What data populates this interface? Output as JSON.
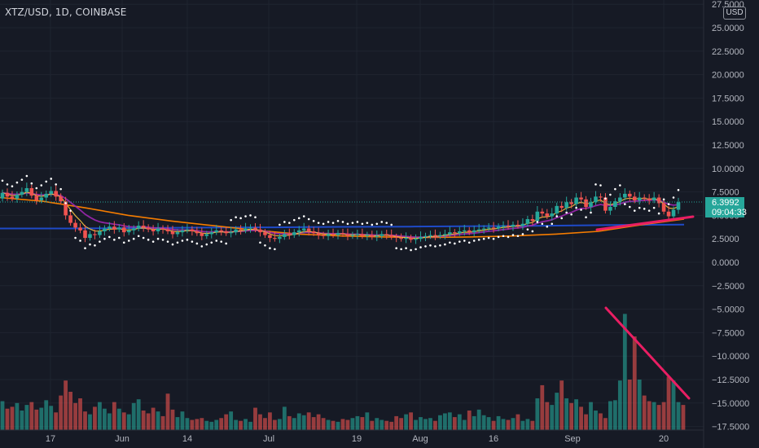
{
  "header": {
    "symbol": "XTZ/USD",
    "timeframe": "1D",
    "exchange": "COINBASE",
    "title": "XTZ/USD, 1D, COINBASE"
  },
  "currency_badge": "USD",
  "last_price": {
    "value": "6.3992",
    "countdown": "09:04:33",
    "color": "#26a69a"
  },
  "colors": {
    "background": "#161a25",
    "grid": "#1f2430",
    "up": "#26a69a",
    "down": "#ef5350",
    "annotation": "#e91e63",
    "ma_long": "#1e4ac8",
    "ma_orange": "#f57c00",
    "ma_purple": "#9c27b0",
    "ma_yellow": "#f5c542"
  },
  "chart_data": {
    "type": "line",
    "title": "XTZ/USD, 1D, COINBASE",
    "y_axis": {
      "ticks": [
        "27.5000",
        "25.0000",
        "22.5000",
        "20.0000",
        "17.5000",
        "15.0000",
        "12.5000",
        "10.0000",
        "7.5000",
        "5.0000",
        "2.5000",
        "0.0000",
        "−2.5000",
        "−5.0000",
        "−7.5000",
        "−10.0000",
        "−12.5000",
        "−15.0000",
        "−17.5000"
      ],
      "range": [
        -17.5,
        27.5
      ]
    },
    "x_axis": {
      "ticks": [
        "17",
        "Jun",
        "14",
        "Jul",
        "19",
        "Aug",
        "16",
        "Sep",
        "20"
      ]
    },
    "price_series": {
      "name": "XTZ/USD",
      "close": [
        7.4,
        7.0,
        6.8,
        7.2,
        7.5,
        7.9,
        7.1,
        6.6,
        6.9,
        7.3,
        7.6,
        7.0,
        6.5,
        5.0,
        4.2,
        3.7,
        3.4,
        2.6,
        3.0,
        2.9,
        3.3,
        3.6,
        3.8,
        3.5,
        3.7,
        3.2,
        3.4,
        3.6,
        3.9,
        3.7,
        3.5,
        3.3,
        3.6,
        3.5,
        3.3,
        3.0,
        3.2,
        3.4,
        3.5,
        3.3,
        3.1,
        2.8,
        3.0,
        3.2,
        3.4,
        3.3,
        3.1,
        3.2,
        3.5,
        3.4,
        3.6,
        3.7,
        3.5,
        3.2,
        2.9,
        2.6,
        2.5,
        2.7,
        3.0,
        2.9,
        3.2,
        3.4,
        3.6,
        3.3,
        3.1,
        2.9,
        2.8,
        3.0,
        2.9,
        3.1,
        3.0,
        2.8,
        2.9,
        3.0,
        2.8,
        2.9,
        2.7,
        2.8,
        3.0,
        2.9,
        2.7,
        2.6,
        2.5,
        2.6,
        2.4,
        2.5,
        2.7,
        2.8,
        2.9,
        2.8,
        2.9,
        3.0,
        3.2,
        3.1,
        3.3,
        3.4,
        3.2,
        3.4,
        3.5,
        3.6,
        3.7,
        3.6,
        3.8,
        3.9,
        3.8,
        4.0,
        3.9,
        4.1,
        4.6,
        4.4,
        5.4,
        5.2,
        4.9,
        5.2,
        6.0,
        5.8,
        6.4,
        6.2,
        6.9,
        6.7,
        5.9,
        6.4,
        7.0,
        6.9,
        5.5,
        5.9,
        6.5,
        6.9,
        7.3,
        7.0,
        6.6,
        6.9,
        6.8,
        6.6,
        6.9,
        6.3,
        5.4,
        4.9,
        5.6,
        6.4
      ],
      "open": [
        6.8,
        7.4,
        7.0,
        6.8,
        7.2,
        7.5,
        7.9,
        7.1,
        6.6,
        6.9,
        7.3,
        7.6,
        7.0,
        6.5,
        5.0,
        4.2,
        3.7,
        3.4,
        2.6,
        3.0,
        2.9,
        3.3,
        3.6,
        3.8,
        3.5,
        3.7,
        3.2,
        3.4,
        3.6,
        3.9,
        3.7,
        3.5,
        3.3,
        3.6,
        3.5,
        3.3,
        3.0,
        3.2,
        3.4,
        3.5,
        3.3,
        3.1,
        2.8,
        3.0,
        3.2,
        3.4,
        3.3,
        3.1,
        3.2,
        3.5,
        3.4,
        3.6,
        3.7,
        3.5,
        3.2,
        2.9,
        2.6,
        2.5,
        2.7,
        3.0,
        2.9,
        3.2,
        3.4,
        3.6,
        3.3,
        3.1,
        2.9,
        2.8,
        3.0,
        2.9,
        3.1,
        3.0,
        2.8,
        2.9,
        3.0,
        2.8,
        2.9,
        2.7,
        2.8,
        3.0,
        2.9,
        2.7,
        2.6,
        2.5,
        2.6,
        2.4,
        2.5,
        2.7,
        2.8,
        2.9,
        2.8,
        2.9,
        3.0,
        3.2,
        3.1,
        3.3,
        3.4,
        3.2,
        3.4,
        3.5,
        3.6,
        3.7,
        3.6,
        3.8,
        3.9,
        3.8,
        4.0,
        3.9,
        4.1,
        4.6,
        4.4,
        5.4,
        5.2,
        4.9,
        5.2,
        6.0,
        5.8,
        6.4,
        6.2,
        6.9,
        6.7,
        5.9,
        6.4,
        7.0,
        6.9,
        5.5,
        5.9,
        6.5,
        6.9,
        7.3,
        7.0,
        6.6,
        6.9,
        6.8,
        6.6,
        6.9,
        6.3,
        5.4,
        4.9,
        5.6
      ],
      "volume_scaled": [
        -14.8,
        -15.6,
        -15.4,
        -15.0,
        -15.8,
        -15.2,
        -14.9,
        -15.7,
        -15.5,
        -14.7,
        -15.3,
        -16.0,
        -14.2,
        -12.6,
        -13.8,
        -15.0,
        -14.5,
        -15.9,
        -16.2,
        -15.4,
        -14.9,
        -15.6,
        -16.1,
        -14.9,
        -15.6,
        -16.0,
        -16.2,
        -15.0,
        -14.6,
        -15.8,
        -16.1,
        -15.5,
        -15.9,
        -16.4,
        -14.0,
        -15.7,
        -16.5,
        -15.9,
        -16.6,
        -16.8,
        -16.7,
        -16.6,
        -16.9,
        -17.0,
        -16.8,
        -16.6,
        -16.2,
        -15.9,
        -16.8,
        -16.9,
        -16.7,
        -17.0,
        -15.5,
        -16.2,
        -16.6,
        -16.0,
        -16.8,
        -16.7,
        -15.4,
        -16.4,
        -16.6,
        -16.1,
        -16.3,
        -16.0,
        -16.5,
        -16.2,
        -16.6,
        -16.8,
        -16.9,
        -17.0,
        -16.7,
        -16.8,
        -16.6,
        -16.4,
        -16.5,
        -16.0,
        -16.9,
        -16.6,
        -16.8,
        -16.9,
        -17.0,
        -16.4,
        -16.6,
        -16.2,
        -16.0,
        -16.8,
        -16.5,
        -16.7,
        -16.6,
        -16.9,
        -16.3,
        -16.1,
        -16.0,
        -16.5,
        -16.2,
        -16.8,
        -15.8,
        -16.4,
        -15.7,
        -16.3,
        -16.5,
        -16.9,
        -16.4,
        -16.7,
        -16.8,
        -16.6,
        -16.2,
        -16.9,
        -16.7,
        -16.9,
        -14.5,
        -13.1,
        -14.9,
        -15.2,
        -13.9,
        -12.6,
        -14.5,
        -15.0,
        -14.6,
        -15.4,
        -16.2,
        -14.9,
        -15.8,
        -16.1,
        -16.6,
        -14.8,
        -14.7,
        -12.6,
        -5.5,
        -12.5,
        -7.9,
        -12.5,
        -14.2,
        -14.8,
        -14.9,
        -15.2,
        -14.9,
        -12.2,
        -12.6,
        -14.9,
        -15.2
      ]
    },
    "moving_averages": [
      {
        "name": "",
        "color": "#1e4ac8",
        "values": [
          3.6,
          3.6,
          3.65,
          3.7,
          3.72,
          3.78,
          3.8,
          3.85,
          3.9,
          3.98,
          4.02
        ]
      },
      {
        "name": "",
        "color": "#f57c00",
        "values": [
          6.9,
          6.5,
          5.8,
          5.0,
          4.4,
          3.9,
          3.4,
          3.0,
          2.8,
          2.7,
          2.65,
          2.7,
          2.8,
          3.0,
          3.3,
          4.0,
          4.6
        ]
      }
    ],
    "parabolic_sar": "dotted white",
    "annotations": [
      {
        "type": "trendline",
        "color": "#e91e63",
        "pane": "price",
        "note": "rising support"
      },
      {
        "type": "trendline",
        "color": "#e91e63",
        "pane": "volume",
        "note": "falling volume"
      }
    ]
  }
}
